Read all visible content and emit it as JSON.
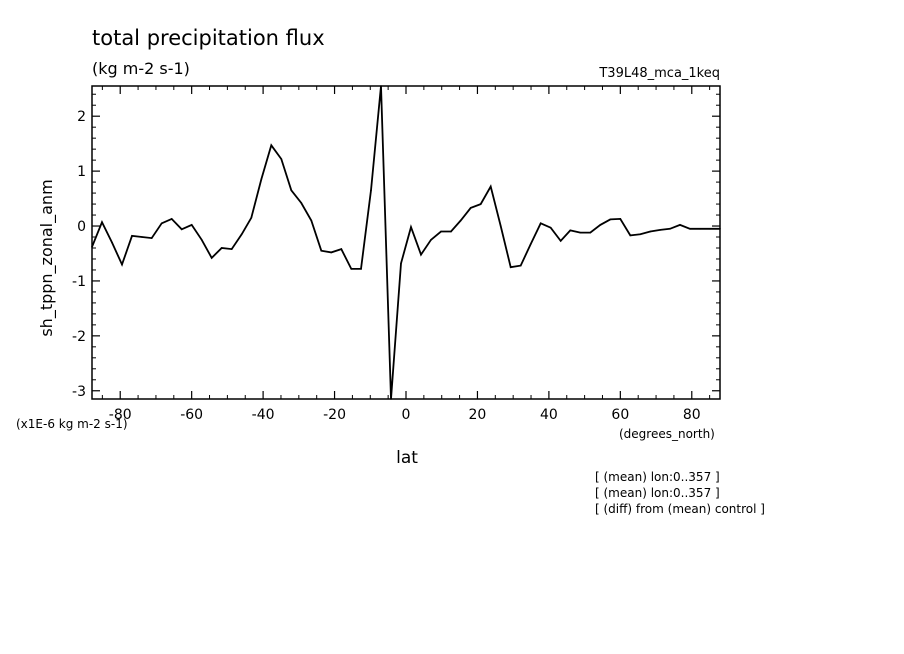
{
  "chart_data": {
    "type": "line",
    "title": "total precipitation flux",
    "subtitle": "(kg m-2 s-1)",
    "run_label": "T39L48_mca_1keq",
    "xlabel": "lat",
    "x_units": "(degrees_north)",
    "ylabel": "sh_tppn_zonal_anm",
    "y_scale_note": "(x1E-6 kg m-2 s-1)",
    "xlim": [
      -87.9,
      87.9
    ],
    "ylim": [
      -3.15,
      2.55
    ],
    "x_ticks": [
      -80,
      -60,
      -40,
      -20,
      0,
      20,
      40,
      60,
      80
    ],
    "x_tick_labels": [
      "-80",
      "-60",
      "-40",
      "-20",
      "0",
      "20",
      "40",
      "60",
      "80"
    ],
    "y_ticks": [
      -3,
      -2,
      -1,
      0,
      1,
      2
    ],
    "y_tick_labels": [
      "-3",
      "-2",
      "-1",
      "0",
      "1",
      "2"
    ],
    "grid": false,
    "series": [
      {
        "x": [
          -87.9,
          -85.1,
          -82.3,
          -79.5,
          -76.7,
          -73.9,
          -71.2,
          -68.4,
          -65.6,
          -62.8,
          -60.0,
          -57.2,
          -54.4,
          -51.6,
          -48.8,
          -46.0,
          -43.3,
          -40.5,
          -37.7,
          -34.9,
          -32.1,
          -29.3,
          -26.5,
          -23.7,
          -20.9,
          -18.1,
          -15.3,
          -12.6,
          -9.8,
          -7.0,
          -4.2,
          -1.4,
          1.4,
          4.2,
          7.0,
          9.8,
          12.6,
          15.3,
          18.1,
          20.9,
          23.7,
          26.5,
          29.3,
          32.1,
          34.9,
          37.7,
          40.5,
          43.3,
          46.0,
          48.8,
          51.6,
          54.4,
          57.2,
          60.0,
          62.8,
          65.6,
          68.4,
          71.2,
          73.9,
          76.7,
          79.5,
          82.3,
          85.1,
          87.9
        ],
        "values": [
          -0.38,
          0.07,
          -0.3,
          -0.7,
          -0.18,
          -0.2,
          -0.22,
          0.05,
          0.13,
          -0.06,
          0.02,
          -0.25,
          -0.58,
          -0.4,
          -0.42,
          -0.15,
          0.15,
          0.85,
          1.47,
          1.22,
          0.65,
          0.42,
          0.1,
          -0.45,
          -0.48,
          -0.42,
          -0.78,
          -0.78,
          0.65,
          2.55,
          -3.15,
          -0.68,
          -0.02,
          -0.52,
          -0.25,
          -0.1,
          -0.1,
          0.1,
          0.33,
          0.4,
          0.72,
          0.0,
          -0.75,
          -0.72,
          -0.33,
          0.05,
          -0.03,
          -0.27,
          -0.08,
          -0.12,
          -0.12,
          0.02,
          0.12,
          0.13,
          -0.17,
          -0.15,
          -0.1,
          -0.07,
          -0.05,
          0.02,
          -0.05,
          -0.05,
          -0.05,
          -0.05
        ]
      }
    ]
  },
  "notes": [
    "[ (mean) lon:0..357 ]",
    "[ (mean) lon:0..357 ]",
    "[ (diff) from (mean) control ]"
  ]
}
